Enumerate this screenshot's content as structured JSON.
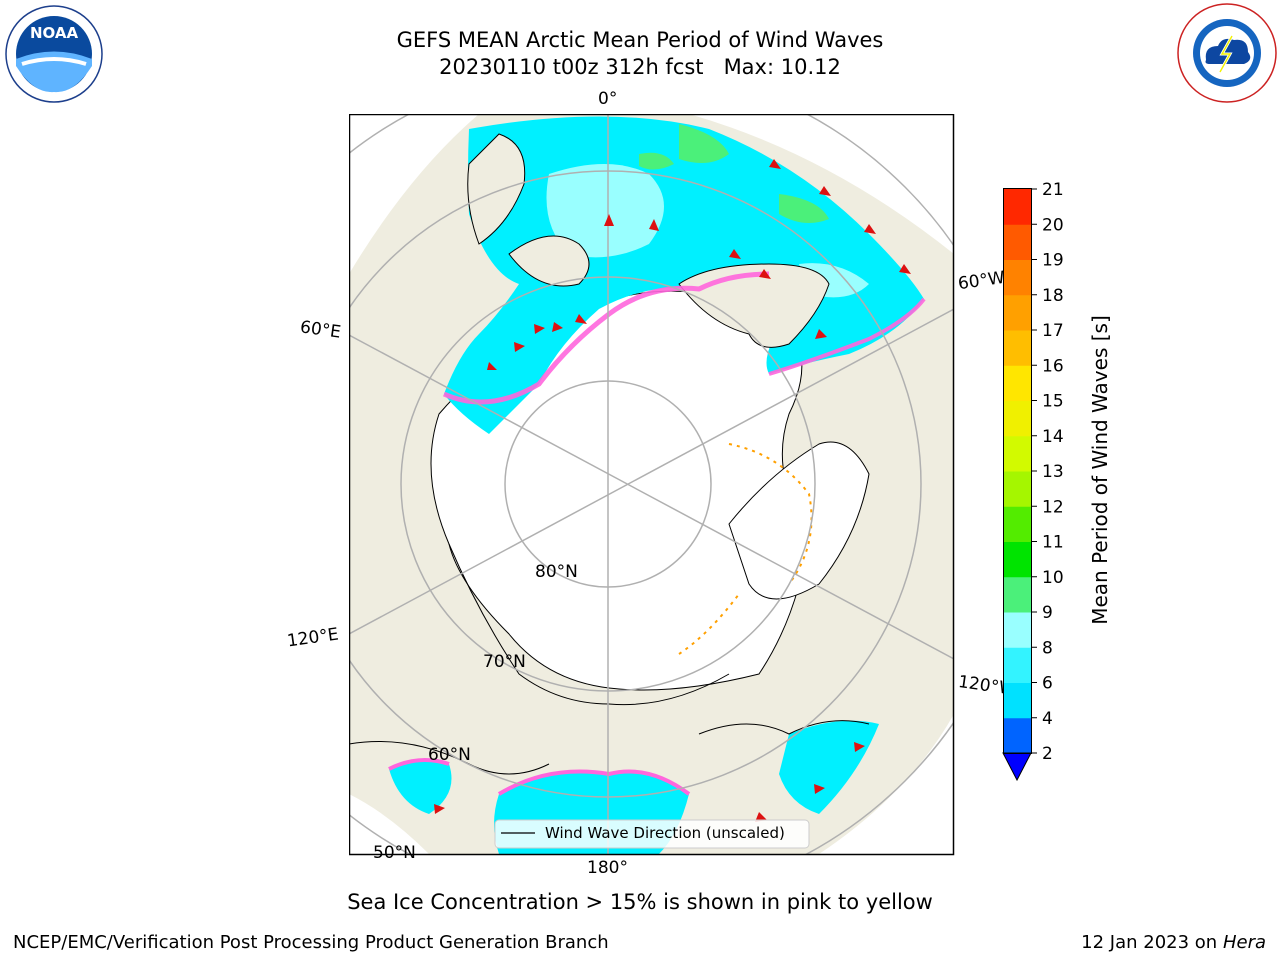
{
  "title": {
    "line1": "GEFS MEAN Arctic Mean Period of Wind Waves",
    "line2": "20230110 t00z 312h fcst   Max: 10.12"
  },
  "logos": {
    "left": "NOAA",
    "left_ring_text": "NATIONAL OCEANIC AND ATMOSPHERIC ADMINISTRATION · U.S. DEPARTMENT OF COMMERCE",
    "right_ring_text": "NATIONAL WEATHER SERVICE"
  },
  "map_labels": {
    "lon_0": "0°",
    "lon_60e": "60°E",
    "lon_120e": "120°E",
    "lon_180": "180°",
    "lon_60w": "60°W",
    "lon_120w": "120°W",
    "lat_80": "80°N",
    "lat_70": "70°N",
    "lat_60": "60°N",
    "lat_50": "50°N"
  },
  "legend": {
    "label": "Wind Wave Direction (unscaled)"
  },
  "colorbar": {
    "label": "Mean Period of Wind Waves [s]",
    "ticks": [
      "2",
      "4",
      "6",
      "8",
      "9",
      "10",
      "11",
      "12",
      "13",
      "14",
      "15",
      "16",
      "17",
      "18",
      "19",
      "20",
      "21"
    ],
    "colors": [
      "#0064ff",
      "#00e1ff",
      "#33f3ff",
      "#99ffff",
      "#4bf07a",
      "#00e400",
      "#53ec00",
      "#a5f600",
      "#d2fa00",
      "#f0f000",
      "#ffe600",
      "#ffbe00",
      "#ffa000",
      "#ff8200",
      "#ff5a00",
      "#ff2800"
    ],
    "under_color": "#0000ff"
  },
  "colors": {
    "ocean_wave": "#00f0ff",
    "ocean_light": "#99ffff",
    "ocean_green": "#4bf07a",
    "land": "#efede0",
    "ice_edge": "#ff66dd",
    "arrow": "#dd1111"
  },
  "subtitle": "Sea Ice Concentration > 15% is shown in pink to yellow",
  "footer": {
    "left": "NCEP/EMC/Verification Post Processing Product Generation Branch",
    "right_date": "12 Jan 2023 on ",
    "right_host": "Hera"
  }
}
